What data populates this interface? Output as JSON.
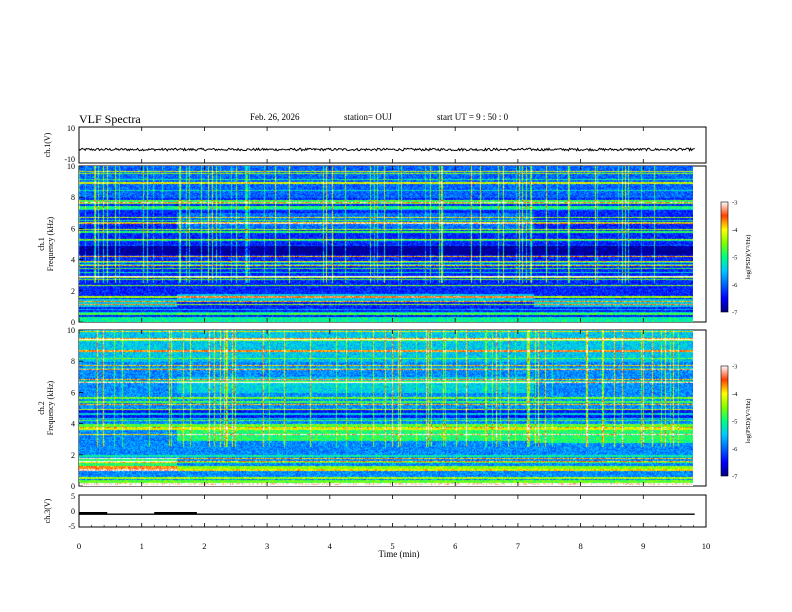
{
  "header": {
    "title": "VLF Spectra",
    "date": "Feb. 26, 2026",
    "station": "station= OUJ",
    "start_ut": "start  UT =   9 : 50 : 0"
  },
  "chart_data": [
    {
      "type": "line",
      "name": "ch1-waveform",
      "ylabel": "ch.1(V)",
      "ylim": [
        -10,
        10
      ],
      "yticks": [
        "10",
        "-10"
      ],
      "series": [
        {
          "name": "ch.1",
          "mean": -2.5,
          "noise": 0.7,
          "x_end": 9.82
        }
      ]
    },
    {
      "type": "heatmap",
      "name": "ch1-spectrogram",
      "ylabel_lines": [
        "ch.1",
        "Frequency  (kHz)"
      ],
      "ylim": [
        0,
        10
      ],
      "yticks": [
        "0",
        "2",
        "4",
        "6",
        "8",
        "10"
      ],
      "x_end": 9.82,
      "colorbar": {
        "label": "log(PSD)(V²/Hz)",
        "ticks": [
          "-3",
          "-4",
          "-5",
          "-6",
          "-7"
        ],
        "range": [
          -7,
          -3
        ]
      },
      "regimes": [
        {
          "x": [
            0,
            1.55
          ],
          "low_band_kHz": [
            1.0,
            1.5
          ]
        },
        {
          "x": [
            1.55,
            7.25
          ],
          "low_band_kHz": [
            1.3,
            1.8
          ],
          "mid_band_kHz": [
            6.0,
            7.0
          ]
        },
        {
          "x": [
            7.25,
            9.82
          ],
          "low_band_kHz": [
            1.0,
            1.5
          ]
        }
      ]
    },
    {
      "type": "heatmap",
      "name": "ch2-spectrogram",
      "ylabel_lines": [
        "ch.2",
        "Frequency  (kHz)"
      ],
      "ylim": [
        0,
        10
      ],
      "yticks": [
        "0",
        "2",
        "4",
        "6",
        "8",
        "10"
      ],
      "x_end": 9.82,
      "colorbar": {
        "label": "log(PSD)(V²/Hz)",
        "ticks": [
          "-3",
          "-4",
          "-5",
          "-6",
          "-7"
        ],
        "range": [
          -7,
          -3
        ]
      },
      "regimes": [
        {
          "x": [
            0,
            1.55
          ],
          "low_band_kHz": [
            1.0,
            1.8
          ]
        },
        {
          "x": [
            1.55,
            7.25
          ],
          "low_band_kHz": [
            2.9,
            3.6
          ],
          "mid_band_kHz": [
            6.0,
            7.0
          ]
        },
        {
          "x": [
            7.25,
            9.82
          ],
          "low_band_kHz": [
            2.8,
            3.6
          ]
        }
      ]
    },
    {
      "type": "line",
      "name": "ch3-trace",
      "ylabel": "ch.3(V)",
      "ylim": [
        -5,
        5
      ],
      "yticks": [
        "5",
        "0",
        "-5"
      ],
      "series": [
        {
          "name": "baseline",
          "y": -1,
          "x": [
            0,
            9.82
          ]
        },
        {
          "name": "pulse-1",
          "y": -0.7,
          "x": [
            0,
            0.45
          ]
        },
        {
          "name": "pulse-2",
          "y": -0.7,
          "x": [
            1.2,
            1.88
          ]
        }
      ]
    }
  ],
  "x_axis": {
    "label": "Time  (min)",
    "ticks": [
      "0",
      "1",
      "2",
      "3",
      "4",
      "5",
      "6",
      "7",
      "8",
      "9",
      "10"
    ],
    "range": [
      0,
      10
    ]
  }
}
